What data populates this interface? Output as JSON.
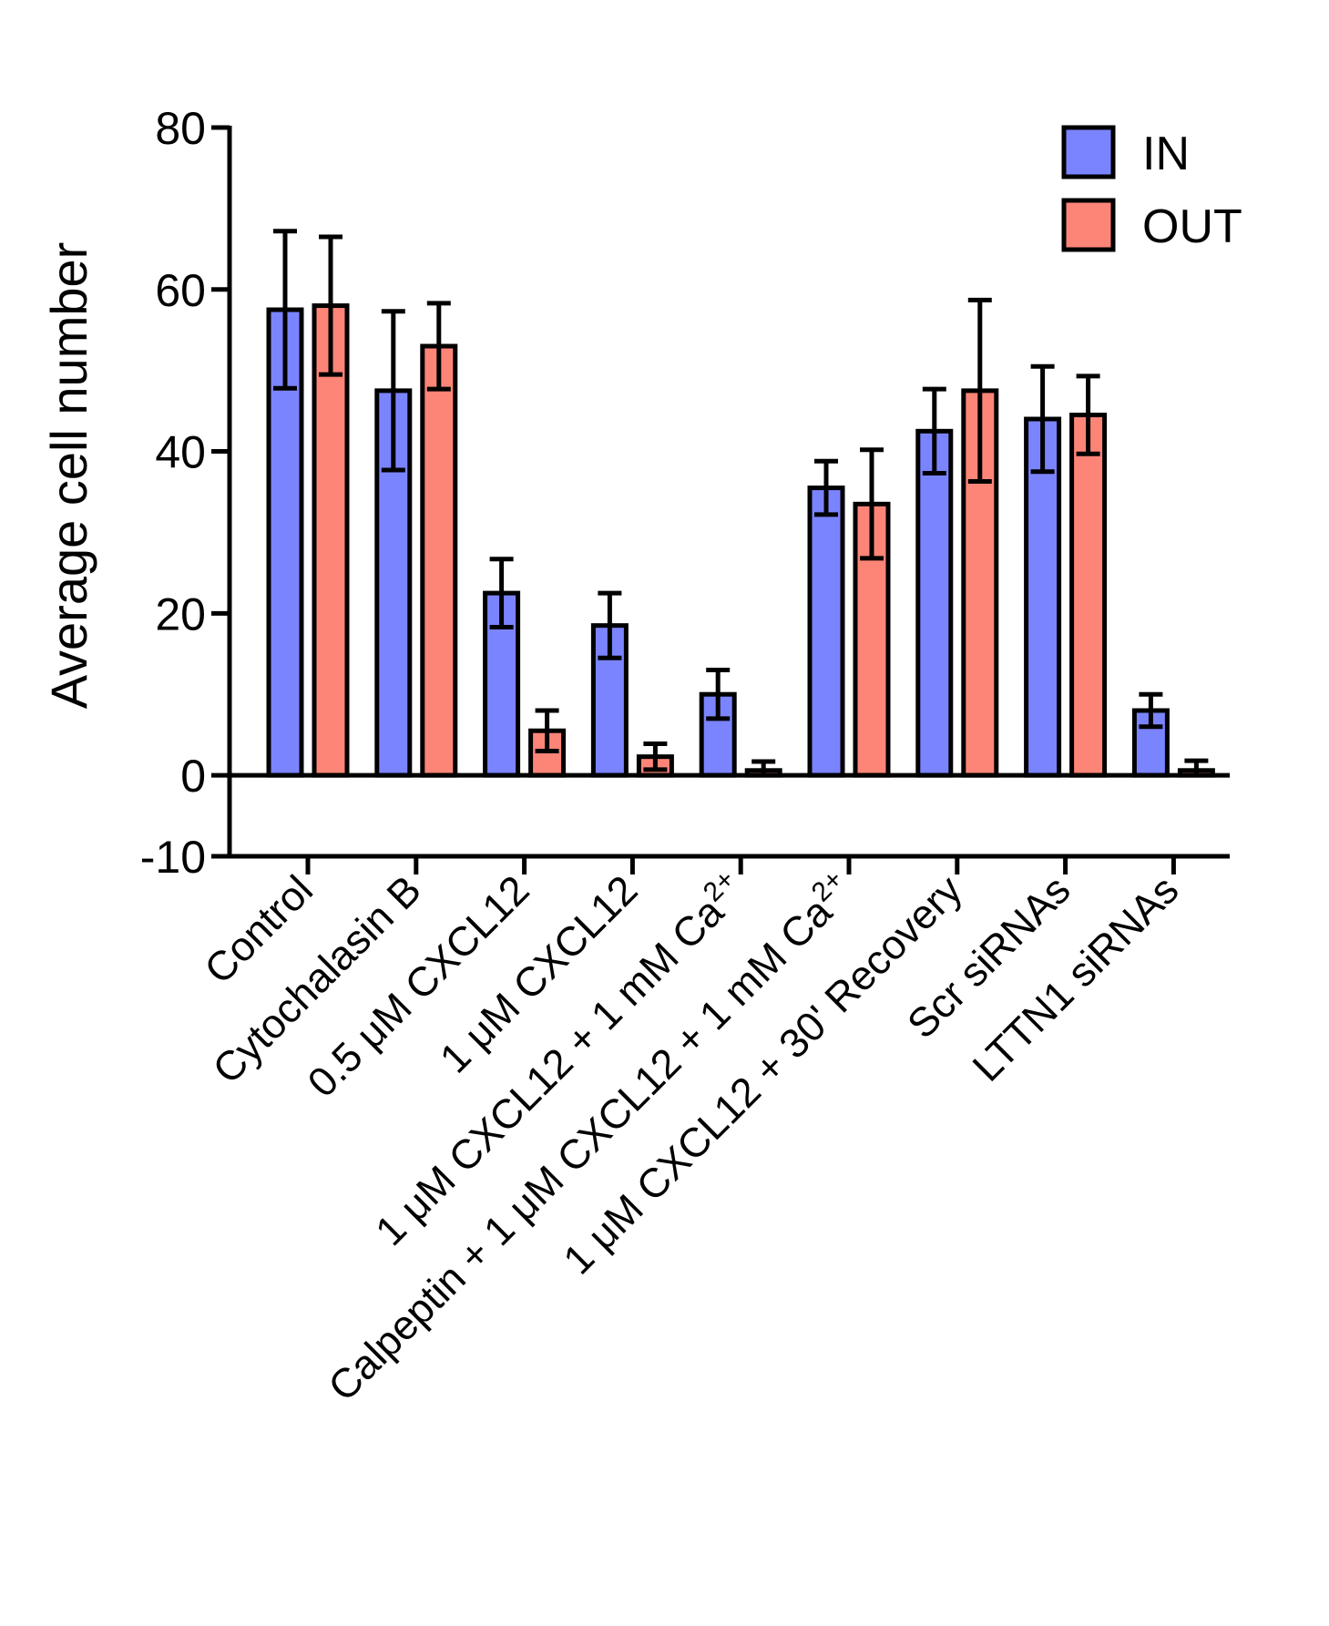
{
  "chart_data": {
    "type": "bar",
    "ylabel": "Average cell number",
    "xlabel": "",
    "ylim": [
      -10,
      80
    ],
    "yticks": [
      -10,
      0,
      20,
      40,
      60,
      80
    ],
    "ytick_labels": [
      "-10",
      "0",
      "20",
      "40",
      "60",
      "80"
    ],
    "legend_position": "top-right",
    "categories": [
      {
        "text": "Control",
        "sup": ""
      },
      {
        "text": "Cytochalasin B",
        "sup": ""
      },
      {
        "text": "0.5 μM CXCL12",
        "sup": ""
      },
      {
        "text": "1 μM CXCL12",
        "sup": ""
      },
      {
        "text": "1 μM CXCL12 + 1 mM Ca",
        "sup": "2+"
      },
      {
        "text": "Calpeptin + 1 μM CXCL12 + 1 mM Ca",
        "sup": "2+"
      },
      {
        "text": "1 μM CXCL12 + 30' Recovery",
        "sup": ""
      },
      {
        "text": "Scr siRNAs",
        "sup": ""
      },
      {
        "text": "LTTN1 siRNAs",
        "sup": ""
      }
    ],
    "series": [
      {
        "name": "IN",
        "color": "#7b84ff",
        "values": [
          57.5,
          47.5,
          22.5,
          18.5,
          10,
          35.5,
          42.5,
          44,
          8
        ],
        "errors": [
          9.7,
          9.8,
          4.2,
          4,
          3,
          3.3,
          5.2,
          6.5,
          2
        ]
      },
      {
        "name": "OUT",
        "color": "#fd8577",
        "values": [
          58,
          53,
          5.5,
          2.3,
          0.6,
          33.5,
          47.5,
          44.5,
          0.6
        ],
        "errors": [
          8.5,
          5.3,
          2.5,
          1.6,
          1.1,
          6.7,
          11.2,
          4.8,
          1.2
        ]
      }
    ]
  }
}
